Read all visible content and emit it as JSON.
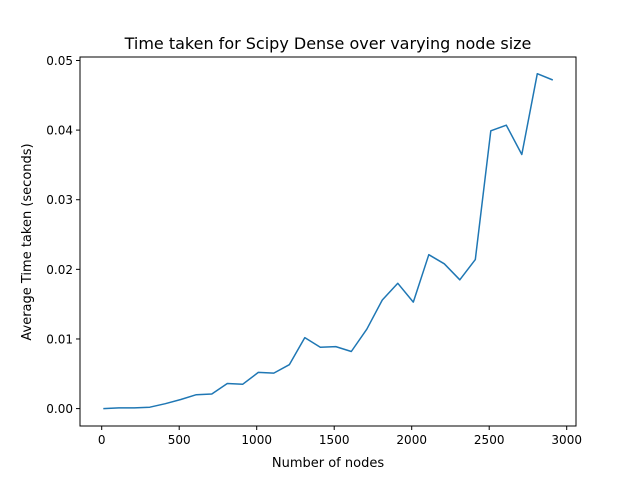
{
  "chart_data": {
    "type": "line",
    "title": "Time taken for Scipy Dense over varying node size",
    "xlabel": "Number of nodes",
    "ylabel": "Average Time taken (seconds)",
    "xlim": [
      -140,
      3060
    ],
    "ylim": [
      -0.0025,
      0.0505
    ],
    "xticks": [
      0,
      500,
      1000,
      1500,
      2000,
      2500,
      3000
    ],
    "xtick_labels": [
      "0",
      "500",
      "1000",
      "1500",
      "2000",
      "2500",
      "3000"
    ],
    "yticks": [
      0.0,
      0.01,
      0.02,
      0.03,
      0.04,
      0.05
    ],
    "ytick_labels": [
      "0.00",
      "0.01",
      "0.02",
      "0.03",
      "0.04",
      "0.05"
    ],
    "grid": false,
    "legend": null,
    "series": [
      {
        "name": "Scipy Dense",
        "color": "#1f77b4",
        "x": [
          10,
          110,
          210,
          310,
          410,
          510,
          610,
          710,
          810,
          910,
          1010,
          1110,
          1210,
          1310,
          1410,
          1510,
          1610,
          1710,
          1810,
          1910,
          2010,
          2110,
          2210,
          2310,
          2410,
          2510,
          2610,
          2710,
          2810,
          2910
        ],
        "values": [
          0.0,
          0.0001,
          0.0001,
          0.0002,
          0.0007,
          0.0013,
          0.002,
          0.0021,
          0.0036,
          0.0035,
          0.0052,
          0.0051,
          0.0063,
          0.0102,
          0.0088,
          0.0089,
          0.0082,
          0.0114,
          0.0156,
          0.018,
          0.0153,
          0.0221,
          0.0208,
          0.0185,
          0.0214,
          0.0399,
          0.0407,
          0.0365,
          0.0481,
          0.0472
        ]
      }
    ]
  }
}
